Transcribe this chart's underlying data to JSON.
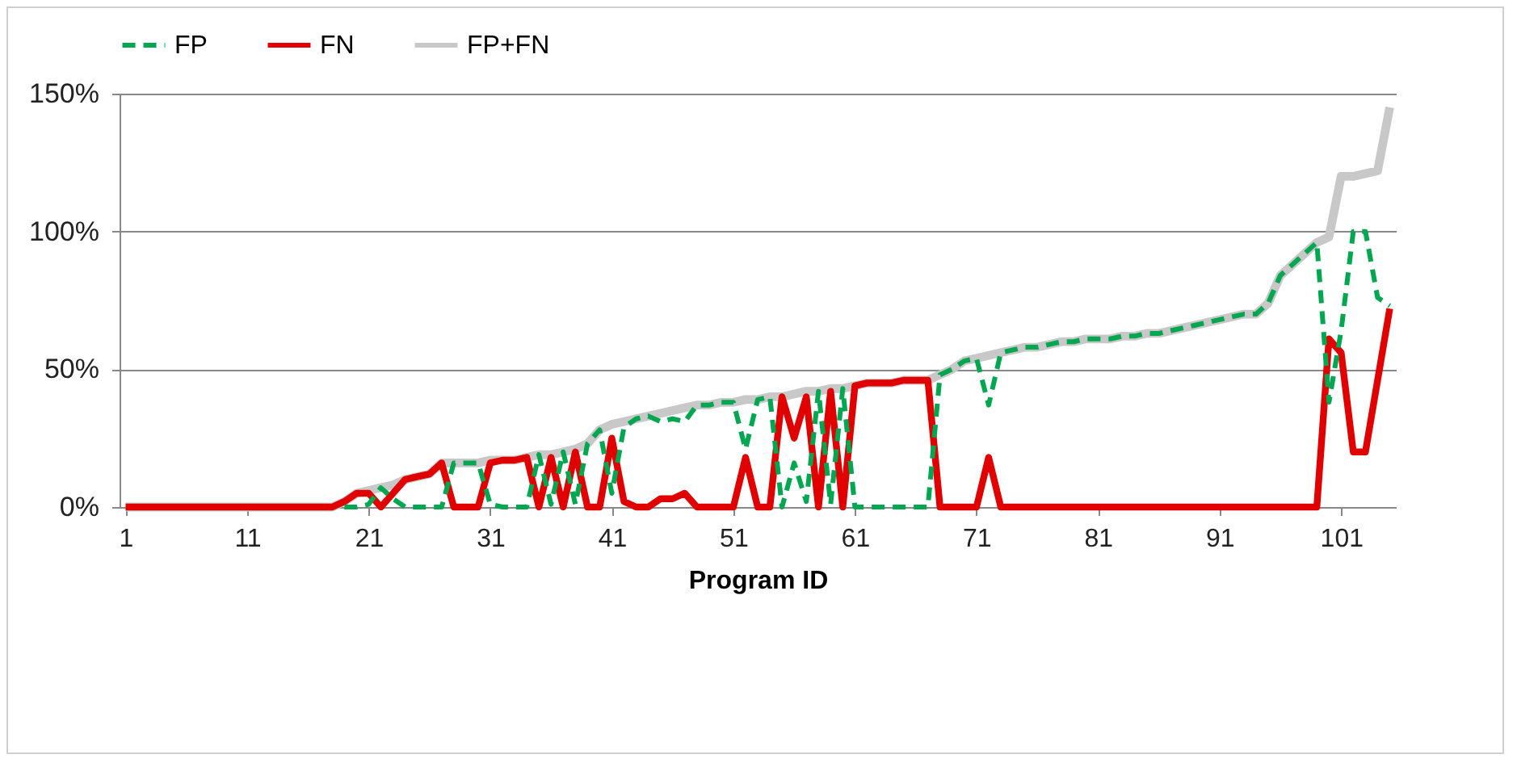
{
  "chart_data": {
    "type": "line",
    "xlabel": "Program ID",
    "categories": [
      "1",
      null,
      null,
      null,
      null,
      null,
      null,
      null,
      null,
      null,
      "11",
      null,
      null,
      null,
      null,
      null,
      null,
      null,
      null,
      null,
      "21",
      null,
      null,
      null,
      null,
      null,
      null,
      null,
      null,
      null,
      "31",
      null,
      null,
      null,
      null,
      null,
      null,
      null,
      null,
      null,
      "41",
      null,
      null,
      null,
      null,
      null,
      null,
      null,
      null,
      null,
      "51",
      null,
      null,
      null,
      null,
      null,
      null,
      null,
      null,
      null,
      "61",
      null,
      null,
      null,
      null,
      null,
      null,
      null,
      null,
      null,
      "71",
      null,
      null,
      null,
      null,
      null,
      null,
      null,
      null,
      null,
      "81",
      null,
      null,
      null,
      null,
      null,
      null,
      null,
      null,
      null,
      "91",
      null,
      null,
      null,
      null,
      null,
      null,
      null,
      null,
      null,
      "101",
      null,
      null,
      null,
      null
    ],
    "series": [
      {
        "name": "FP",
        "color": "#00a650",
        "line_style": "dashed",
        "values": [
          null,
          null,
          null,
          null,
          null,
          null,
          null,
          null,
          null,
          null,
          null,
          null,
          null,
          null,
          null,
          null,
          null,
          null,
          0,
          0,
          1,
          7,
          3,
          0,
          0,
          0,
          0,
          16,
          16,
          16,
          1,
          0,
          0,
          0,
          19,
          1,
          20,
          1,
          23,
          28,
          5,
          29,
          32,
          33,
          31,
          32,
          31,
          37,
          37,
          38,
          38,
          21,
          39,
          40,
          0,
          16,
          2,
          42,
          1,
          43,
          0,
          0,
          0,
          0,
          0,
          0,
          0,
          48,
          50,
          53,
          54,
          37,
          56,
          57,
          58,
          58,
          59,
          60,
          60,
          61,
          61,
          61,
          62,
          62,
          63,
          63,
          64,
          65,
          66,
          67,
          68,
          69,
          70,
          70,
          74,
          84,
          88,
          92,
          96,
          38,
          64,
          100,
          100,
          76,
          73
        ]
      },
      {
        "name": "FN",
        "color": "#e00000",
        "line_style": "solid",
        "values": [
          0,
          0,
          0,
          0,
          0,
          0,
          0,
          0,
          0,
          0,
          0,
          0,
          0,
          0,
          0,
          0,
          0,
          0,
          2,
          5,
          5,
          0,
          5,
          10,
          11,
          12,
          16,
          0,
          0,
          0,
          16,
          17,
          17,
          18,
          0,
          18,
          0,
          20,
          0,
          0,
          25,
          2,
          0,
          0,
          3,
          3,
          5,
          0,
          0,
          0,
          0,
          18,
          0,
          0,
          40,
          25,
          40,
          0,
          42,
          0,
          44,
          45,
          45,
          45,
          46,
          46,
          46,
          0,
          0,
          0,
          0,
          18,
          0,
          0,
          0,
          0,
          0,
          0,
          0,
          0,
          0,
          0,
          0,
          0,
          0,
          0,
          0,
          0,
          0,
          0,
          0,
          0,
          0,
          0,
          0,
          0,
          0,
          0,
          0,
          61,
          56,
          20,
          20,
          46,
          72
        ]
      },
      {
        "name": "FP+FN",
        "color": "#c8c8c8",
        "line_style": "solid",
        "values": [
          0,
          0,
          0,
          0,
          0,
          0,
          0,
          0,
          0,
          0,
          0,
          0,
          0,
          0,
          0,
          0,
          0,
          0,
          2,
          5,
          6,
          7,
          8,
          10,
          11,
          12,
          16,
          16,
          16,
          16,
          17,
          17,
          17,
          18,
          19,
          19,
          20,
          21,
          23,
          28,
          30,
          31,
          32,
          33,
          34,
          35,
          36,
          37,
          37,
          38,
          38,
          39,
          39,
          40,
          40,
          41,
          42,
          42,
          43,
          43,
          44,
          45,
          45,
          45,
          46,
          46,
          46,
          48,
          50,
          53,
          54,
          55,
          56,
          57,
          58,
          58,
          59,
          60,
          60,
          61,
          61,
          61,
          62,
          62,
          63,
          63,
          64,
          65,
          66,
          67,
          68,
          69,
          70,
          70,
          74,
          84,
          88,
          92,
          96,
          98,
          120,
          120,
          121,
          122,
          145
        ]
      }
    ],
    "ylim": [
      0,
      150
    ],
    "yticks": [
      {
        "value": 0,
        "label": "0%"
      },
      {
        "value": 50,
        "label": "50%"
      },
      {
        "value": 100,
        "label": "100%"
      },
      {
        "value": 150,
        "label": "150%"
      }
    ],
    "grid": "y",
    "legend": "top"
  }
}
